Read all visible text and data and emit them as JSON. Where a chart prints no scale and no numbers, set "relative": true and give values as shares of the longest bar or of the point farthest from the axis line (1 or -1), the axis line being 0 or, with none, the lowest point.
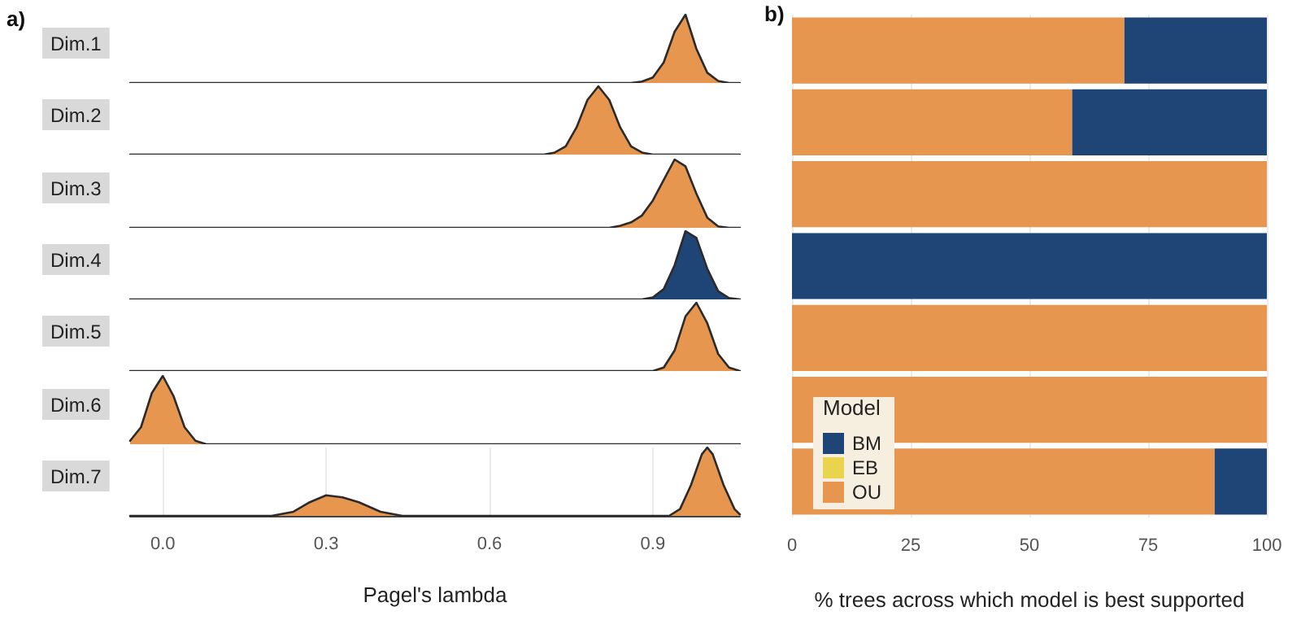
{
  "chart_data": [
    {
      "type": "area",
      "title": "Dim.1",
      "relative": true,
      "annotations": [
        "a)"
      ],
      "tick_labels": false,
      "categories": [
        null,
        null,
        null,
        null,
        null,
        null,
        null,
        null,
        null,
        null,
        null,
        null,
        null,
        null,
        null,
        null,
        null,
        null,
        null,
        null,
        null,
        null,
        null,
        null,
        null,
        null,
        null,
        null,
        null,
        null,
        null,
        null,
        null,
        null,
        null,
        null,
        null,
        null,
        null,
        null,
        null,
        null,
        null,
        null,
        null,
        null,
        null,
        null,
        null,
        null,
        null,
        null,
        null,
        null,
        null,
        null,
        null
      ],
      "series": [
        {
          "color": "#e6964f",
          "values": [
            0,
            0,
            0,
            0,
            0,
            0,
            0,
            0,
            0,
            0,
            0,
            0,
            0,
            0,
            0,
            0,
            0,
            0,
            0,
            0,
            0,
            0,
            0,
            0,
            0,
            0,
            0,
            0,
            0,
            0,
            0,
            0,
            0,
            0,
            0,
            0,
            0,
            0,
            0,
            0,
            0,
            0,
            0,
            0,
            0,
            0,
            0,
            0.02,
            0.08,
            0.3,
            0.75,
            1,
            0.5,
            0.15,
            0.03,
            0,
            0
          ]
        }
      ]
    },
    {
      "type": "area",
      "title": "Dim.2",
      "relative": true,
      "tick_labels": false,
      "categories": [
        null,
        null,
        null,
        null,
        null,
        null,
        null,
        null,
        null,
        null,
        null,
        null,
        null,
        null,
        null,
        null,
        null,
        null,
        null,
        null,
        null,
        null,
        null,
        null,
        null,
        null,
        null,
        null,
        null,
        null,
        null,
        null,
        null,
        null,
        null,
        null,
        null,
        null,
        null,
        null,
        null,
        null,
        null,
        null,
        null,
        null,
        null,
        null,
        null,
        null,
        null,
        null,
        null,
        null,
        null,
        null,
        null
      ],
      "series": [
        {
          "color": "#e6964f",
          "values": [
            0,
            0,
            0,
            0,
            0,
            0,
            0,
            0,
            0,
            0,
            0,
            0,
            0,
            0,
            0,
            0,
            0,
            0,
            0,
            0,
            0,
            0,
            0,
            0,
            0,
            0,
            0,
            0,
            0,
            0,
            0,
            0,
            0,
            0,
            0,
            0,
            0,
            0,
            0,
            0.03,
            0.12,
            0.4,
            0.8,
            1,
            0.8,
            0.4,
            0.12,
            0.03,
            0,
            0,
            0,
            0,
            0,
            0,
            0,
            0,
            0
          ]
        }
      ]
    },
    {
      "type": "area",
      "title": "Dim.3",
      "relative": true,
      "tick_labels": false,
      "categories": [
        null,
        null,
        null,
        null,
        null,
        null,
        null,
        null,
        null,
        null,
        null,
        null,
        null,
        null,
        null,
        null,
        null,
        null,
        null,
        null,
        null,
        null,
        null,
        null,
        null,
        null,
        null,
        null,
        null,
        null,
        null,
        null,
        null,
        null,
        null,
        null,
        null,
        null,
        null,
        null,
        null,
        null,
        null,
        null,
        null,
        null,
        null,
        null,
        null,
        null,
        null,
        null,
        null,
        null,
        null,
        null,
        null
      ],
      "series": [
        {
          "color": "#e6964f",
          "values": [
            0,
            0,
            0,
            0,
            0,
            0,
            0,
            0,
            0,
            0,
            0,
            0,
            0,
            0,
            0,
            0,
            0,
            0,
            0,
            0,
            0,
            0,
            0,
            0,
            0,
            0,
            0,
            0,
            0,
            0,
            0,
            0,
            0,
            0,
            0,
            0,
            0,
            0,
            0,
            0,
            0,
            0,
            0,
            0,
            0,
            0.03,
            0.08,
            0.18,
            0.4,
            0.7,
            1,
            0.9,
            0.5,
            0.15,
            0.02,
            0,
            0
          ]
        }
      ]
    },
    {
      "type": "area",
      "title": "Dim.4",
      "relative": true,
      "tick_labels": false,
      "categories": [
        null,
        null,
        null,
        null,
        null,
        null,
        null,
        null,
        null,
        null,
        null,
        null,
        null,
        null,
        null,
        null,
        null,
        null,
        null,
        null,
        null,
        null,
        null,
        null,
        null,
        null,
        null,
        null,
        null,
        null,
        null,
        null,
        null,
        null,
        null,
        null,
        null,
        null,
        null,
        null,
        null,
        null,
        null,
        null,
        null,
        null,
        null,
        null,
        null,
        null,
        null,
        null,
        null,
        null,
        null,
        null,
        null
      ],
      "series": [
        {
          "color": "#1f4577",
          "values": [
            0,
            0,
            0,
            0,
            0,
            0,
            0,
            0,
            0,
            0,
            0,
            0,
            0,
            0,
            0,
            0,
            0,
            0,
            0,
            0,
            0,
            0,
            0,
            0,
            0,
            0,
            0,
            0,
            0,
            0,
            0,
            0,
            0,
            0,
            0,
            0,
            0,
            0,
            0,
            0,
            0,
            0,
            0,
            0,
            0,
            0,
            0,
            0,
            0.03,
            0.15,
            0.5,
            1,
            0.9,
            0.45,
            0.12,
            0.02,
            0
          ]
        }
      ]
    },
    {
      "type": "area",
      "title": "Dim.5",
      "relative": true,
      "tick_labels": false,
      "categories": [
        null,
        null,
        null,
        null,
        null,
        null,
        null,
        null,
        null,
        null,
        null,
        null,
        null,
        null,
        null,
        null,
        null,
        null,
        null,
        null,
        null,
        null,
        null,
        null,
        null,
        null,
        null,
        null,
        null,
        null,
        null,
        null,
        null,
        null,
        null,
        null,
        null,
        null,
        null,
        null,
        null,
        null,
        null,
        null,
        null,
        null,
        null,
        null,
        null,
        null,
        null,
        null,
        null,
        null,
        null,
        null,
        null
      ],
      "series": [
        {
          "color": "#e6964f",
          "values": [
            0,
            0,
            0,
            0,
            0,
            0,
            0,
            0,
            0,
            0,
            0,
            0,
            0,
            0,
            0,
            0,
            0,
            0,
            0,
            0,
            0,
            0,
            0,
            0,
            0,
            0,
            0,
            0,
            0,
            0,
            0,
            0,
            0,
            0,
            0,
            0,
            0,
            0,
            0,
            0,
            0,
            0,
            0,
            0,
            0,
            0,
            0,
            0,
            0,
            0.05,
            0.3,
            0.8,
            1,
            0.7,
            0.25,
            0.05,
            0
          ]
        }
      ]
    },
    {
      "type": "area",
      "title": "Dim.6",
      "relative": true,
      "tick_labels": false,
      "categories": [
        null,
        null,
        null,
        null,
        null,
        null,
        null,
        null,
        null,
        null,
        null,
        null,
        null,
        null,
        null,
        null,
        null,
        null,
        null,
        null,
        null,
        null,
        null,
        null,
        null,
        null,
        null,
        null,
        null,
        null,
        null,
        null,
        null,
        null,
        null,
        null,
        null,
        null,
        null,
        null,
        null,
        null,
        null,
        null,
        null,
        null,
        null,
        null,
        null,
        null,
        null,
        null,
        null,
        null,
        null,
        null,
        null
      ],
      "series": [
        {
          "color": "#e6964f",
          "values": [
            0.05,
            0.25,
            0.75,
            1,
            0.7,
            0.25,
            0.05,
            0,
            0,
            0,
            0,
            0,
            0,
            0,
            0,
            0,
            0,
            0,
            0,
            0,
            0,
            0,
            0,
            0,
            0,
            0,
            0,
            0,
            0,
            0,
            0,
            0,
            0,
            0,
            0,
            0,
            0,
            0,
            0,
            0,
            0,
            0,
            0,
            0,
            0,
            0,
            0,
            0,
            0,
            0,
            0,
            0,
            0,
            0,
            0,
            0,
            0
          ]
        }
      ]
    },
    {
      "type": "area",
      "title": "Dim.7",
      "relative": true,
      "xlabel": "Pagel's lambda",
      "xlim": [
        -0.06,
        1.06
      ],
      "xticks": [
        {
          "value": 0,
          "label": "0.0"
        },
        {
          "value": 0.3,
          "label": "0.3"
        },
        {
          "value": 0.6,
          "label": "0.6"
        },
        {
          "value": 0.9,
          "label": "0.9"
        }
      ],
      "tick_labels": "x",
      "grid": "x",
      "series": [
        {
          "color": "#e6964f",
          "x": [
            -0.06,
            0.2,
            0.24,
            0.27,
            0.3,
            0.33,
            0.36,
            0.4,
            0.44,
            0.93,
            0.95,
            0.97,
            0.99,
            1.0,
            1.01,
            1.03,
            1.05,
            1.06
          ],
          "values": [
            0,
            0,
            0.06,
            0.2,
            0.3,
            0.27,
            0.2,
            0.06,
            0,
            0,
            0.1,
            0.45,
            0.9,
            1,
            0.9,
            0.45,
            0.1,
            0.02
          ]
        }
      ]
    },
    {
      "type": "bar",
      "orientation": "horizontal",
      "stacked": true,
      "annotations": [
        "b)"
      ],
      "xlabel": "% trees across which model is best supported",
      "categories": [
        null,
        null,
        null,
        null,
        null,
        null,
        null
      ],
      "xlim": [
        0,
        100
      ],
      "xticks": [
        0,
        25,
        50,
        75,
        100
      ],
      "tick_labels": "x",
      "grid": "x",
      "legend": "bottom left",
      "legend_title": "Model",
      "series": [
        {
          "name": "OU",
          "color": "#e6964f",
          "values": [
            70,
            59,
            100,
            0,
            100,
            100,
            89
          ]
        },
        {
          "name": "EB",
          "color": "#e8d44d",
          "values": [
            0,
            0,
            0,
            0,
            0,
            0,
            0
          ]
        },
        {
          "name": "BM",
          "color": "#1f4577",
          "values": [
            30,
            41,
            0,
            100,
            0,
            0,
            11
          ]
        }
      ]
    }
  ]
}
